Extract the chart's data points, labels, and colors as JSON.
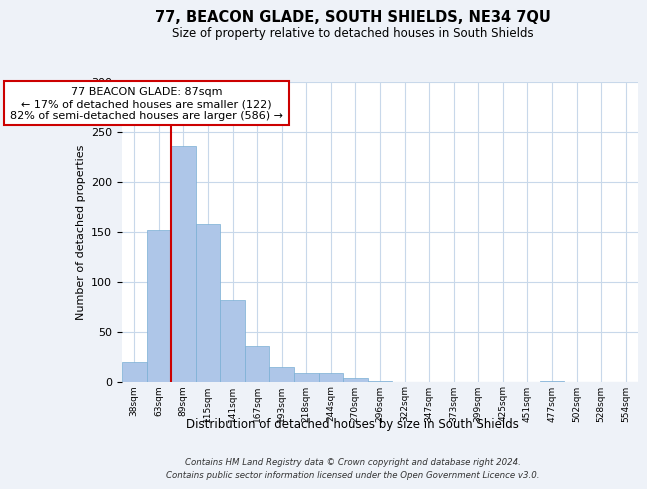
{
  "title": "77, BEACON GLADE, SOUTH SHIELDS, NE34 7QU",
  "subtitle": "Size of property relative to detached houses in South Shields",
  "xlabel": "Distribution of detached houses by size in South Shields",
  "ylabel": "Number of detached properties",
  "bar_labels": [
    "38sqm",
    "63sqm",
    "89sqm",
    "115sqm",
    "141sqm",
    "167sqm",
    "193sqm",
    "218sqm",
    "244sqm",
    "270sqm",
    "296sqm",
    "322sqm",
    "347sqm",
    "373sqm",
    "399sqm",
    "425sqm",
    "451sqm",
    "477sqm",
    "502sqm",
    "528sqm",
    "554sqm"
  ],
  "bar_values": [
    20,
    152,
    236,
    158,
    82,
    36,
    15,
    9,
    9,
    4,
    1,
    0,
    0,
    0,
    0,
    0,
    0,
    1,
    0,
    0,
    0
  ],
  "bar_color": "#aec6e8",
  "bar_edge_color": "#7aafd4",
  "vline_x_index": 2,
  "vline_color": "#cc0000",
  "annotation_line1": "77 BEACON GLADE: 87sqm",
  "annotation_line2": "← 17% of detached houses are smaller (122)",
  "annotation_line3": "82% of semi-detached houses are larger (586) →",
  "annotation_box_color": "#ffffff",
  "annotation_box_edge_color": "#cc0000",
  "ylim": [
    0,
    300
  ],
  "yticks": [
    0,
    50,
    100,
    150,
    200,
    250,
    300
  ],
  "footer_text": "Contains HM Land Registry data © Crown copyright and database right 2024.\nContains public sector information licensed under the Open Government Licence v3.0.",
  "bg_color": "#eef2f8",
  "plot_bg_color": "#ffffff",
  "grid_color": "#c8d8ea"
}
